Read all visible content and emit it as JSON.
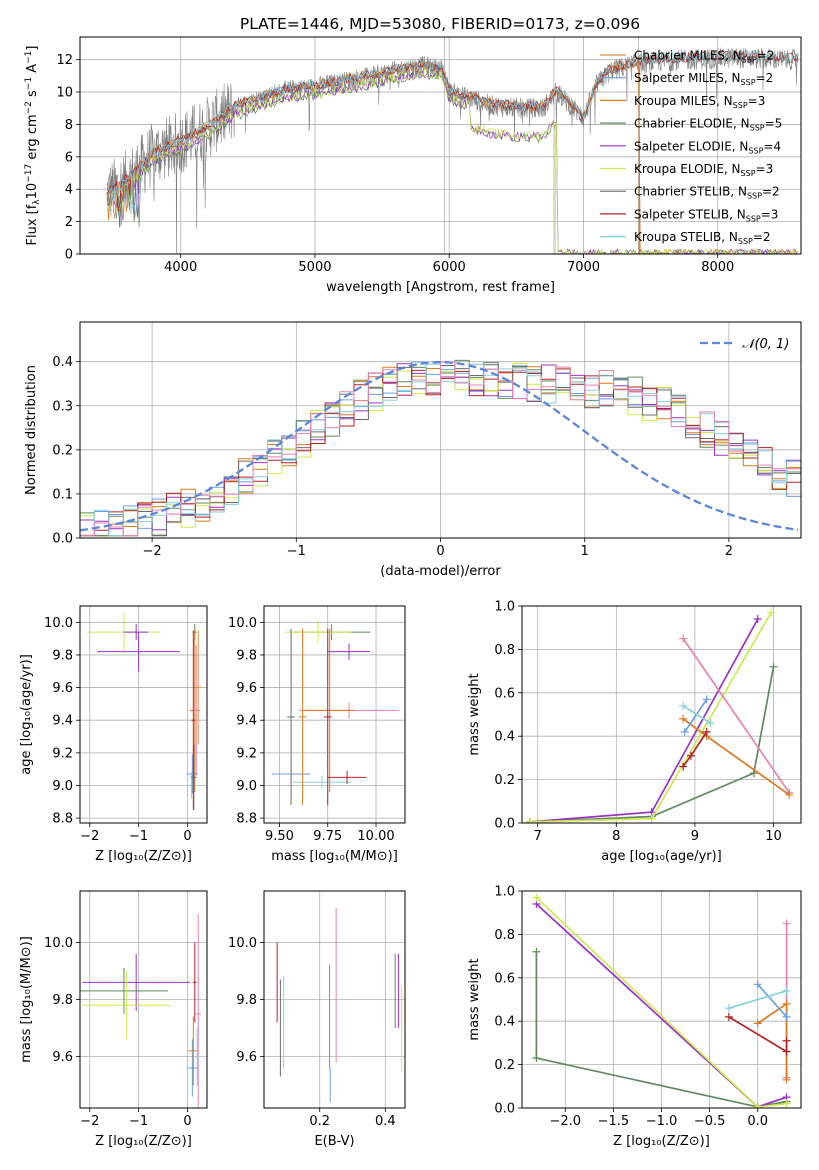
{
  "figure": {
    "title": "PLATE=1446, MJD=53080, FIBERID=0173, z=0.096"
  },
  "model_colors": [
    "#DE8C3F",
    "#699FE5",
    "#DB7A1F",
    "#5F8A5F",
    "#9932C6",
    "#CDE94F",
    "#6B6B6B",
    "#B22222",
    "#87CEDB",
    "#E682B2"
  ],
  "chart_data": [
    {
      "id": "spectrum",
      "type": "line",
      "xlabel": "wavelength [Angstrom, rest frame]",
      "ylabel_parts": [
        "Flux [f",
        "λ",
        "10",
        "−17",
        " erg cm",
        "−2",
        " s",
        "−1",
        " A",
        "−1",
        "]"
      ],
      "xlim": [
        3250,
        8620
      ],
      "ylim": [
        0,
        13.4
      ],
      "xticks": [
        4000,
        5000,
        6000,
        7000,
        8000
      ],
      "yticks": [
        0,
        2,
        4,
        6,
        8,
        10,
        12
      ],
      "grid": true,
      "vlines": [
        5965,
        6780,
        7410
      ],
      "legend_position": "top-right",
      "observed_color": "#808080",
      "observed_anchors": [
        [
          3450,
          3.7
        ],
        [
          3600,
          4.5
        ],
        [
          3800,
          6.2
        ],
        [
          4000,
          6.9
        ],
        [
          4200,
          7.8
        ],
        [
          4400,
          9.0
        ],
        [
          4600,
          9.6
        ],
        [
          4800,
          10.1
        ],
        [
          5000,
          10.3
        ],
        [
          5200,
          10.6
        ],
        [
          5400,
          10.9
        ],
        [
          5600,
          11.3
        ],
        [
          5800,
          11.6
        ],
        [
          5950,
          11.4
        ],
        [
          6000,
          10.0
        ],
        [
          6200,
          9.5
        ],
        [
          6300,
          9.2
        ],
        [
          6500,
          9.0
        ],
        [
          6700,
          9.0
        ],
        [
          6800,
          10.0
        ],
        [
          7000,
          8.4
        ],
        [
          7100,
          10.5
        ],
        [
          7200,
          11.3
        ],
        [
          7400,
          11.8
        ],
        [
          7600,
          11.9
        ],
        [
          7800,
          12.0
        ],
        [
          8000,
          12.1
        ],
        [
          8200,
          12.1
        ],
        [
          8500,
          12.0
        ]
      ],
      "series": [
        {
          "name": "Chabrier MILES",
          "nssp": "2",
          "color": "#DE8C3F",
          "group": "miles"
        },
        {
          "name": "Salpeter MILES",
          "nssp": "2",
          "color": "#699FE5",
          "group": "miles"
        },
        {
          "name": "Kroupa MILES",
          "nssp": "3",
          "color": "#DB7A1F",
          "group": "miles"
        },
        {
          "name": "Chabrier ELODIE",
          "nssp": "5",
          "color": "#5F8A5F",
          "group": "elodie"
        },
        {
          "name": "Salpeter ELODIE",
          "nssp": "4",
          "color": "#9932C6",
          "group": "elodie"
        },
        {
          "name": "Kroupa ELODIE",
          "nssp": "3",
          "color": "#CDE94F",
          "group": "elodie"
        },
        {
          "name": "Chabrier STELIB",
          "nssp": "2",
          "color": "#6B6B6B",
          "group": "stelib"
        },
        {
          "name": "Salpeter STELIB",
          "nssp": "3",
          "color": "#B22222",
          "group": "stelib"
        },
        {
          "name": "Kroupa STELIB",
          "nssp": "2",
          "color": "#87CEDB",
          "group": "stelib"
        }
      ]
    },
    {
      "id": "residuals",
      "type": "histogram",
      "xlabel": "(data-model)/error",
      "ylabel": "Normed distribution",
      "xlim": [
        -2.5,
        2.5
      ],
      "ylim": [
        0,
        0.49
      ],
      "xticks": [
        -2,
        -1,
        0,
        1,
        2
      ],
      "yticks": [
        0.0,
        0.1,
        0.2,
        0.3,
        0.4
      ],
      "grid": true,
      "legend_position": "top-right",
      "legend_label": "𝒩(0, 1)",
      "gaussian_color": "#5B86DB",
      "bin_width": 0.1
    },
    {
      "id": "z_age",
      "type": "scatter",
      "xlabel": "Z [log₁₀(Z/Z⊙)]",
      "ylabel": "age  [log₁₀(age/yr)]",
      "xlim": [
        -2.2,
        0.4
      ],
      "ylim": [
        8.77,
        10.1
      ],
      "xticks": [
        -2,
        -1,
        0
      ],
      "yticks": [
        8.8,
        9.0,
        9.2,
        9.4,
        9.6,
        9.8,
        10.0
      ],
      "grid": true,
      "points": [
        {
          "x": -1.3,
          "y": 9.94,
          "xerr": 0.75,
          "yerr": 0.12,
          "color": "#CDE94F"
        },
        {
          "x": -1.0,
          "y": 9.82,
          "xerr": 0.85,
          "yerr": 0.12,
          "color": "#9932C6"
        },
        {
          "x": -1.05,
          "y": 9.94,
          "xerr": 0.25,
          "yerr": 0.05,
          "color": "#9932C6"
        },
        {
          "x": 0.15,
          "y": 9.94,
          "xerr": 0.04,
          "yerr": 0.05,
          "color": "#5F8A5F"
        },
        {
          "x": 0.15,
          "y": 9.46,
          "xerr": 0.1,
          "yerr": 0.5,
          "color": "#DB7A1F"
        },
        {
          "x": 0.18,
          "y": 9.46,
          "xerr": 0.08,
          "yerr": 0.4,
          "color": "#E682B2"
        },
        {
          "x": 0.1,
          "y": 9.07,
          "xerr": 0.12,
          "yerr": 0.12,
          "color": "#699FE5"
        },
        {
          "x": 0.08,
          "y": 9.0,
          "xerr": 0.06,
          "yerr": 0.08,
          "color": "#87CEDB"
        },
        {
          "x": 0.12,
          "y": 9.4,
          "xerr": 0.04,
          "yerr": 0.55,
          "color": "#B22222"
        },
        {
          "x": 0.13,
          "y": 9.05,
          "xerr": 0.06,
          "yerr": 0.2,
          "color": "#6B6B6B"
        },
        {
          "x": 0.22,
          "y": 9.6,
          "xerr": 0.05,
          "yerr": 0.35,
          "color": "#DE8C3F"
        }
      ]
    },
    {
      "id": "mass_age",
      "type": "scatter",
      "xlabel": "mass [log₁₀(M/M⊙)]",
      "ylabel": "",
      "xlim": [
        9.42,
        10.15
      ],
      "ylim": [
        8.77,
        10.1
      ],
      "xticks": [
        9.5,
        9.75,
        10.0
      ],
      "tick_labels": [
        "9.50",
        "9.75",
        "10.00"
      ],
      "yticks": [
        8.8,
        9.0,
        9.2,
        9.4,
        9.6,
        9.8,
        10.0
      ],
      "grid": true,
      "points": [
        {
          "x": 9.77,
          "y": 9.94,
          "xerr": 0.2,
          "yerr": 0.05,
          "color": "#5F8A5F"
        },
        {
          "x": 9.7,
          "y": 9.94,
          "xerr": 0.17,
          "yerr": 0.07,
          "color": "#CDE94F"
        },
        {
          "x": 9.86,
          "y": 9.82,
          "xerr": 0.11,
          "yerr": 0.05,
          "color": "#9932C6"
        },
        {
          "x": 9.86,
          "y": 9.46,
          "xerr": 0.26,
          "yerr": 0.05,
          "color": "#E682B2"
        },
        {
          "x": 9.76,
          "y": 9.46,
          "xerr": 0.13,
          "yerr": 0.5,
          "color": "#DB7A1F"
        },
        {
          "x": 9.56,
          "y": 9.07,
          "xerr": 0.1,
          "yerr": 0.05,
          "color": "#699FE5"
        },
        {
          "x": 9.72,
          "y": 9.02,
          "xerr": 0.15,
          "yerr": 0.04,
          "color": "#87CEDB"
        },
        {
          "x": 9.85,
          "y": 9.05,
          "xerr": 0.1,
          "yerr": 0.04,
          "color": "#B22222"
        },
        {
          "x": 9.56,
          "y": 9.42,
          "xerr": 0.02,
          "yerr": 0.54,
          "color": "#6B6B6B"
        },
        {
          "x": 9.62,
          "y": 9.42,
          "xerr": 0.02,
          "yerr": 0.54,
          "color": "#DB7A1F"
        },
        {
          "x": 9.75,
          "y": 9.42,
          "xerr": 0.02,
          "yerr": 0.54,
          "color": "#B22222"
        }
      ]
    },
    {
      "id": "age_weight",
      "type": "line",
      "xlabel": "age  [log₁₀(age/yr)]",
      "ylabel": "mass weight",
      "xlim": [
        6.8,
        10.35
      ],
      "ylim": [
        0,
        1.0
      ],
      "xticks": [
        7,
        8,
        9,
        10
      ],
      "yticks": [
        0.0,
        0.2,
        0.4,
        0.6,
        0.8,
        1.0
      ],
      "grid": true,
      "series": [
        {
          "color": "#5F8A5F",
          "points": [
            [
              6.9,
              0.005
            ],
            [
              8.45,
              0.03
            ],
            [
              9.75,
              0.23
            ],
            [
              10.0,
              0.72
            ]
          ]
        },
        {
          "color": "#9932C6",
          "points": [
            [
              6.9,
              0.005
            ],
            [
              8.45,
              0.05
            ],
            [
              9.8,
              0.94
            ]
          ]
        },
        {
          "color": "#CDE94F",
          "points": [
            [
              6.9,
              0.005
            ],
            [
              8.45,
              0.02
            ],
            [
              9.97,
              0.97
            ]
          ]
        },
        {
          "color": "#E682B2",
          "points": [
            [
              8.85,
              0.85
            ],
            [
              10.2,
              0.14
            ]
          ]
        },
        {
          "color": "#DB7A1F",
          "points": [
            [
              8.85,
              0.48
            ],
            [
              9.15,
              0.4
            ],
            [
              10.2,
              0.13
            ]
          ]
        },
        {
          "color": "#699FE5",
          "points": [
            [
              8.87,
              0.42
            ],
            [
              9.15,
              0.57
            ]
          ]
        },
        {
          "color": "#87CEDB",
          "points": [
            [
              8.85,
              0.54
            ],
            [
              9.2,
              0.46
            ]
          ]
        },
        {
          "color": "#B22222",
          "points": [
            [
              8.85,
              0.26
            ],
            [
              8.95,
              0.31
            ],
            [
              9.15,
              0.42
            ]
          ]
        }
      ]
    },
    {
      "id": "z_mass",
      "type": "scatter",
      "xlabel": "Z [log₁₀(Z/Z⊙)]",
      "ylabel": "mass [log₁₀(M/M⊙)]",
      "xlim": [
        -2.2,
        0.4
      ],
      "ylim": [
        9.42,
        10.18
      ],
      "xticks": [
        -2,
        -1,
        0
      ],
      "yticks": [
        9.6,
        9.8,
        10.0
      ],
      "grid": true,
      "points": [
        {
          "x": -1.05,
          "y": 9.86,
          "xerr": 1.1,
          "yerr": 0.1,
          "color": "#9932C6"
        },
        {
          "x": -1.3,
          "y": 9.83,
          "xerr": 0.9,
          "yerr": 0.08,
          "color": "#5F8A5F"
        },
        {
          "x": -1.25,
          "y": 9.78,
          "xerr": 0.9,
          "yerr": 0.12,
          "color": "#CDE94F"
        },
        {
          "x": 0.1,
          "y": 9.56,
          "xerr": 0.1,
          "yerr": 0.1,
          "color": "#699FE5"
        },
        {
          "x": 0.12,
          "y": 9.62,
          "xerr": 0.1,
          "yerr": 0.12,
          "color": "#DB7A1F"
        },
        {
          "x": 0.15,
          "y": 9.86,
          "xerr": 0.04,
          "yerr": 0.14,
          "color": "#B22222"
        },
        {
          "x": 0.22,
          "y": 9.75,
          "xerr": 0.06,
          "yerr": 0.35,
          "color": "#E682B2"
        },
        {
          "x": 0.2,
          "y": 9.6,
          "xerr": 0.04,
          "yerr": 0.1,
          "color": "#87CEDB"
        }
      ]
    },
    {
      "id": "ebv_mass",
      "type": "scatter",
      "xlabel": "E(B-V)",
      "ylabel": "",
      "xlim": [
        0.03,
        0.46
      ],
      "ylim": [
        9.42,
        10.18
      ],
      "xticks": [
        0.2,
        0.4
      ],
      "tick_labels": [
        "0.2",
        "0.4"
      ],
      "yticks": [
        9.6,
        9.8,
        10.0
      ],
      "grid": true,
      "points": [
        {
          "x": 0.07,
          "y": 9.86,
          "yerr": 0.14,
          "color": "#B22222"
        },
        {
          "x": 0.08,
          "y": 9.7,
          "yerr": 0.17,
          "color": "#6B6B6B"
        },
        {
          "x": 0.09,
          "y": 9.72,
          "yerr": 0.16,
          "color": "#87CEDB"
        },
        {
          "x": 0.23,
          "y": 9.74,
          "yerr": 0.18,
          "color": "#DB7A1F"
        },
        {
          "x": 0.232,
          "y": 9.5,
          "yerr": 0.06,
          "color": "#699FE5"
        },
        {
          "x": 0.25,
          "y": 9.85,
          "yerr": 0.27,
          "color": "#E682B2"
        },
        {
          "x": 0.43,
          "y": 9.83,
          "yerr": 0.13,
          "color": "#5F8A5F"
        },
        {
          "x": 0.44,
          "y": 9.83,
          "yerr": 0.13,
          "color": "#9932C6"
        },
        {
          "x": 0.45,
          "y": 9.7,
          "yerr": 0.15,
          "color": "#CDE94F"
        }
      ]
    },
    {
      "id": "z_weight",
      "type": "line",
      "xlabel": "Z [log₁₀(Z/Z⊙)]",
      "ylabel": "mass weight",
      "xlim": [
        -2.45,
        0.45
      ],
      "ylim": [
        0,
        1.0
      ],
      "xticks": [
        -2.0,
        -1.5,
        -1.0,
        -0.5,
        0.0
      ],
      "tick_labels": [
        "−2.0",
        "−1.5",
        "−1.0",
        "−0.5",
        "0.0"
      ],
      "yticks": [
        0.0,
        0.2,
        0.4,
        0.6,
        0.8,
        1.0
      ],
      "grid": true,
      "series": [
        {
          "color": "#5F8A5F",
          "points": [
            [
              -2.3,
              0.72
            ],
            [
              -2.3,
              0.23
            ],
            [
              0.0,
              0.005
            ],
            [
              0.3,
              0.03
            ]
          ]
        },
        {
          "color": "#9932C6",
          "points": [
            [
              -2.3,
              0.94
            ],
            [
              0.0,
              0.005
            ],
            [
              0.3,
              0.05
            ]
          ]
        },
        {
          "color": "#CDE94F",
          "points": [
            [
              -2.3,
              0.97
            ],
            [
              0.0,
              0.005
            ],
            [
              0.3,
              0.02
            ]
          ]
        },
        {
          "color": "#E682B2",
          "points": [
            [
              0.3,
              0.85
            ],
            [
              0.3,
              0.14
            ]
          ]
        },
        {
          "color": "#DB7A1F",
          "points": [
            [
              0.0,
              0.39
            ],
            [
              0.3,
              0.48
            ],
            [
              0.3,
              0.13
            ]
          ]
        },
        {
          "color": "#699FE5",
          "points": [
            [
              0.0,
              0.57
            ],
            [
              0.3,
              0.42
            ]
          ]
        },
        {
          "color": "#87CEDB",
          "points": [
            [
              -0.3,
              0.46
            ],
            [
              0.3,
              0.54
            ]
          ]
        },
        {
          "color": "#B22222",
          "points": [
            [
              -0.3,
              0.42
            ],
            [
              0.3,
              0.26
            ],
            [
              0.3,
              0.31
            ]
          ]
        }
      ]
    }
  ]
}
